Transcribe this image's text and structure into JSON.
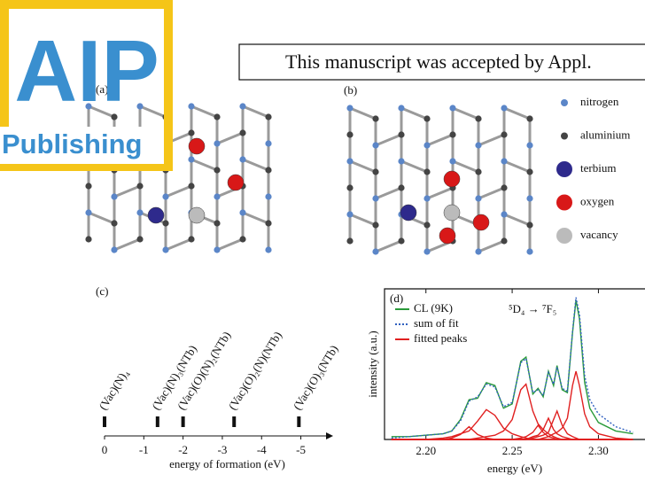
{
  "banner": "This manuscript was accepted by Appl.",
  "logo": {
    "name": "AIP",
    "subtitle": "Publishing"
  },
  "structures": [
    {
      "label": "(a)"
    },
    {
      "label": "(b)"
    }
  ],
  "legend": [
    {
      "label": "nitrogen",
      "color": "#5b86c8"
    },
    {
      "label": "aluminium",
      "color": "#444444"
    },
    {
      "label": "terbium",
      "color": "#2e2a8c"
    },
    {
      "label": "oxygen",
      "color": "#d81818"
    },
    {
      "label": "vacancy",
      "color": "#bbbbbb"
    }
  ],
  "chart_data": [
    {
      "type": "levels",
      "panel": "(c)",
      "xlabel": "energy of formation (eV)",
      "xlim": [
        0,
        -5.8
      ],
      "xticks": [
        0,
        -1,
        -2,
        -3,
        -4,
        -5
      ],
      "categories": [
        "(Vac)(N)₄",
        "(Vac)(N)₃(NTb)",
        "(Vac)(O)(N)₂(NTb)",
        "(Vac)(O)₂(N)(NTb)",
        "(Vac)(O)₃(NTb)"
      ],
      "values": [
        0,
        -1.35,
        -2.0,
        -3.3,
        -4.95
      ]
    },
    {
      "type": "line",
      "panel": "(d)",
      "xlabel": "energy (eV)",
      "ylabel": "intensity (a.u.)",
      "annotation": "⁵D₄ → ⁷F₅",
      "xlim": [
        2.176,
        2.327
      ],
      "ylim": [
        0,
        1.06
      ],
      "xticks": [
        {
          "value": 2.2,
          "label": "2.20"
        },
        {
          "value": 2.25,
          "label": "2.25"
        },
        {
          "value": 2.3,
          "label": "2.30"
        }
      ],
      "x": [
        2.18,
        2.19,
        2.2,
        2.21,
        2.215,
        2.22,
        2.225,
        2.23,
        2.235,
        2.24,
        2.245,
        2.25,
        2.255,
        2.258,
        2.262,
        2.265,
        2.268,
        2.271,
        2.274,
        2.276,
        2.279,
        2.282,
        2.285,
        2.287,
        2.289,
        2.292,
        2.295,
        2.3,
        2.31,
        2.32
      ],
      "series": [
        {
          "name": "CL (9K)",
          "color": "#2a9a3a",
          "style": "solid",
          "values": [
            0.02,
            0.02,
            0.03,
            0.04,
            0.06,
            0.14,
            0.28,
            0.29,
            0.4,
            0.38,
            0.22,
            0.25,
            0.55,
            0.58,
            0.32,
            0.36,
            0.3,
            0.48,
            0.38,
            0.52,
            0.35,
            0.33,
            0.75,
            0.98,
            0.85,
            0.4,
            0.22,
            0.12,
            0.06,
            0.04
          ]
        },
        {
          "name": "sum of fit",
          "color": "#3060c0",
          "style": "dotted",
          "values": [
            0.01,
            0.02,
            0.03,
            0.04,
            0.06,
            0.13,
            0.27,
            0.3,
            0.39,
            0.37,
            0.23,
            0.26,
            0.54,
            0.57,
            0.33,
            0.35,
            0.31,
            0.47,
            0.39,
            0.51,
            0.36,
            0.34,
            0.76,
            1.0,
            0.88,
            0.45,
            0.28,
            0.18,
            0.09,
            0.05
          ]
        },
        {
          "name": "fitted peaks",
          "color": "#e02020",
          "style": "solid",
          "curves": [
            [
              0,
              0,
              0,
              0,
              0.01,
              0.035,
              0.09,
              0.035,
              0.01,
              0,
              0,
              0,
              0,
              0,
              0,
              0,
              0,
              0,
              0,
              0,
              0,
              0,
              0,
              0,
              0,
              0,
              0,
              0,
              0,
              0
            ],
            [
              0,
              0,
              0,
              0.01,
              0.02,
              0.04,
              0.06,
              0.13,
              0.21,
              0.17,
              0.08,
              0.04,
              0.02,
              0.01,
              0,
              0,
              0,
              0,
              0,
              0,
              0,
              0,
              0,
              0,
              0,
              0,
              0,
              0,
              0,
              0
            ],
            [
              0,
              0,
              0,
              0,
              0,
              0,
              0,
              0.01,
              0.02,
              0.03,
              0.06,
              0.14,
              0.35,
              0.39,
              0.2,
              0.11,
              0.07,
              0.04,
              0.02,
              0.01,
              0,
              0,
              0,
              0,
              0,
              0,
              0,
              0,
              0,
              0
            ],
            [
              0,
              0,
              0,
              0,
              0,
              0,
              0,
              0,
              0,
              0,
              0,
              0,
              0.01,
              0.02,
              0.05,
              0.1,
              0.05,
              0.02,
              0.01,
              0,
              0,
              0,
              0,
              0,
              0,
              0,
              0,
              0,
              0,
              0
            ],
            [
              0,
              0,
              0,
              0,
              0,
              0,
              0,
              0,
              0,
              0,
              0,
              0,
              0,
              0,
              0.02,
              0.03,
              0.07,
              0.15,
              0.07,
              0.04,
              0.02,
              0.01,
              0,
              0,
              0,
              0,
              0,
              0,
              0,
              0
            ],
            [
              0,
              0,
              0,
              0,
              0,
              0,
              0,
              0,
              0,
              0,
              0,
              0,
              0,
              0,
              0.01,
              0.02,
              0.03,
              0.05,
              0.14,
              0.2,
              0.1,
              0.04,
              0.02,
              0.01,
              0,
              0,
              0,
              0,
              0,
              0
            ],
            [
              0,
              0,
              0,
              0,
              0,
              0,
              0,
              0,
              0,
              0,
              0,
              0,
              0,
              0,
              0,
              0,
              0.01,
              0.02,
              0.04,
              0.05,
              0.08,
              0.15,
              0.38,
              0.48,
              0.38,
              0.18,
              0.09,
              0.04,
              0.01,
              0
            ]
          ]
        }
      ]
    }
  ]
}
